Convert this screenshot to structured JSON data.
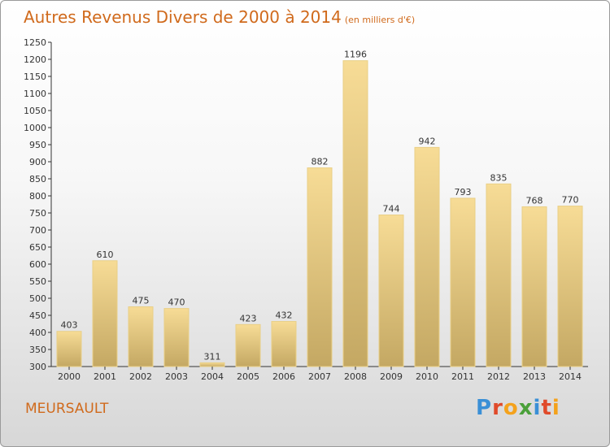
{
  "title": "Autres Revenus Divers de 2000 à 2014",
  "subtitle": "(en milliers d'€)",
  "location": "MEURSAULT",
  "logo": {
    "letters": [
      "P",
      "r",
      "o",
      "x",
      "i",
      "t",
      "i"
    ],
    "colors": [
      "#3a8fd6",
      "#e04a2a",
      "#f4a21c",
      "#4aa03a",
      "#3a8fd6",
      "#e04a2a",
      "#f4a21c"
    ]
  },
  "colors": {
    "bar_light": "#f7dc96",
    "bar_dark": "#c4a863",
    "accent": "#d06a1c"
  },
  "chart_data": {
    "type": "bar",
    "categories": [
      "2000",
      "2001",
      "2002",
      "2003",
      "2004",
      "2005",
      "2006",
      "2007",
      "2008",
      "2009",
      "2010",
      "2011",
      "2012",
      "2013",
      "2014"
    ],
    "values": [
      403,
      610,
      475,
      470,
      311,
      423,
      432,
      882,
      1196,
      744,
      942,
      793,
      835,
      768,
      770
    ],
    "title": "Autres Revenus Divers de 2000 à 2014",
    "xlabel": "",
    "ylabel": "",
    "ylim": [
      300,
      1250
    ],
    "yticks": [
      300,
      350,
      400,
      450,
      500,
      550,
      600,
      650,
      700,
      750,
      800,
      850,
      900,
      950,
      1000,
      1050,
      1100,
      1150,
      1200,
      1250
    ],
    "grid": false
  }
}
